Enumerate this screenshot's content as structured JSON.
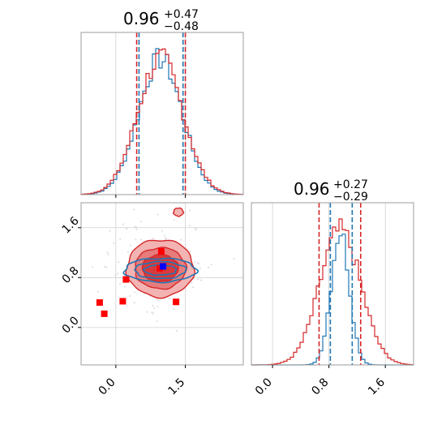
{
  "chart_data": {
    "type": "corner",
    "colors": {
      "series_a": "#1f77b4",
      "series_b": "#d62728",
      "marker_blue": "#0000ff",
      "marker_red": "#ff0000"
    },
    "panels": [
      {
        "id": "hist-x",
        "type": "histogram",
        "title": {
          "value": "0.96",
          "upper": "+0.47",
          "lower": "−0.48"
        },
        "xlim": [
          -0.75,
          2.75
        ],
        "quantile_lines": {
          "series_a": [
            0.5,
            1.45
          ],
          "series_b": [
            0.45,
            1.5
          ]
        },
        "grid_x": [
          0.0,
          1.5
        ],
        "series": [
          {
            "name": "",
            "color": "#1f77b4",
            "center": 0.96,
            "sigma": 0.47,
            "jitter": 0.0
          },
          {
            "name": "",
            "color": "#d62728",
            "center": 0.96,
            "sigma": 0.49,
            "jitter": 0.5
          }
        ]
      },
      {
        "id": "joint",
        "type": "contour",
        "xlim": [
          -0.75,
          2.75
        ],
        "ylim": [
          -0.6,
          2.0
        ],
        "xticks": [
          "0.0",
          "1.5"
        ],
        "xtick_values": [
          0.0,
          1.5
        ],
        "yticks": [
          "0.0",
          "0.8",
          "1.6"
        ],
        "ytick_values": [
          0.0,
          0.8,
          1.6
        ],
        "red_markers": [
          {
            "x": -0.35,
            "y": 0.4
          },
          {
            "x": -0.25,
            "y": 0.22
          },
          {
            "x": 0.15,
            "y": 0.42
          },
          {
            "x": 0.22,
            "y": 0.77
          },
          {
            "x": 0.95,
            "y": 0.95
          },
          {
            "x": 0.98,
            "y": 1.22
          },
          {
            "x": 1.3,
            "y": 0.41
          }
        ],
        "blue_marker": {
          "x": 1.02,
          "y": 0.98
        },
        "red_contours": {
          "center": [
            0.96,
            0.95
          ],
          "radii": [
            [
              1.45,
              0.92
            ],
            [
              1.1,
              0.66
            ],
            [
              0.78,
              0.43
            ]
          ]
        },
        "blue_contours": {
          "center": [
            0.96,
            0.92
          ],
          "radii": [
            [
              1.55,
              0.38
            ],
            [
              1.1,
              0.27
            ],
            [
              0.7,
              0.16
            ]
          ]
        }
      },
      {
        "id": "hist-y",
        "type": "histogram",
        "title": {
          "value": "0.96",
          "upper": "+0.27",
          "lower": "−0.29"
        },
        "xlim": [
          -0.3,
          2.0
        ],
        "xticks": [
          "0.0",
          "0.8",
          "1.6"
        ],
        "xtick_values": [
          0.0,
          0.8,
          1.6
        ],
        "quantile_lines": {
          "series_a": [
            0.82,
            1.13
          ],
          "series_b": [
            0.66,
            1.25
          ]
        },
        "grid_x": [
          0.0,
          0.8,
          1.6
        ],
        "series": [
          {
            "name": "",
            "color": "#1f77b4",
            "center": 0.96,
            "sigma": 0.13,
            "jitter": 0.0
          },
          {
            "name": "",
            "color": "#d62728",
            "center": 0.96,
            "sigma": 0.29,
            "jitter": 0.5
          }
        ]
      }
    ]
  }
}
